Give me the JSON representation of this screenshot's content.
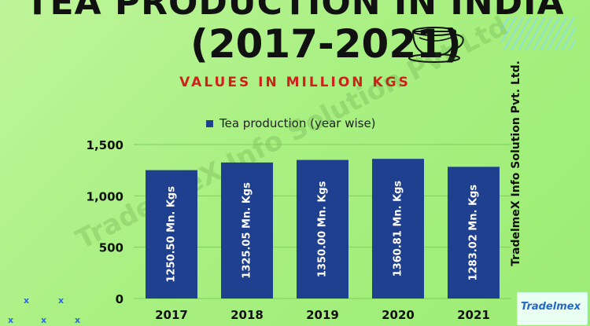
{
  "header": {
    "title_line1": "TEA PRODUCTION IN INDIA",
    "title_line2": "(2017-2021)",
    "subtitle": "VALUES IN MILLION KGS"
  },
  "branding": {
    "side_text": "TradelmeX Info Solution Pvt. Ltd.",
    "logo_text": "Tradelmex",
    "watermark": "TradelmeX Info Solution Pvt Ltd"
  },
  "decor": {
    "marks": [
      "x",
      "x",
      "x",
      "x",
      "x",
      "x"
    ]
  },
  "colors": {
    "bar": "#1f3f8f",
    "title": "#111111",
    "subtitle": "#d0201c",
    "background": "#a9f082"
  },
  "chart_data": {
    "type": "bar",
    "legend": "Tea production (year wise)",
    "legend_position": "top",
    "categories": [
      "2017",
      "2018",
      "2019",
      "2020",
      "2021"
    ],
    "series": [
      {
        "name": "Tea production (year wise)",
        "values": [
          1250.5,
          1325.05,
          1350.0,
          1360.81,
          1283.02
        ]
      }
    ],
    "data_labels": [
      "1250.50 Mn. Kgs",
      "1325.05 Mn. Kgs",
      "1350.00 Mn. Kgs",
      "1360.81 Mn. Kgs",
      "1283.02 Mn. Kgs"
    ],
    "yticks": [
      "0",
      "500",
      "1,000",
      "1,500"
    ],
    "ytick_values": [
      0,
      500,
      1000,
      1500
    ],
    "ylim": [
      0,
      1500
    ],
    "grid": true
  }
}
